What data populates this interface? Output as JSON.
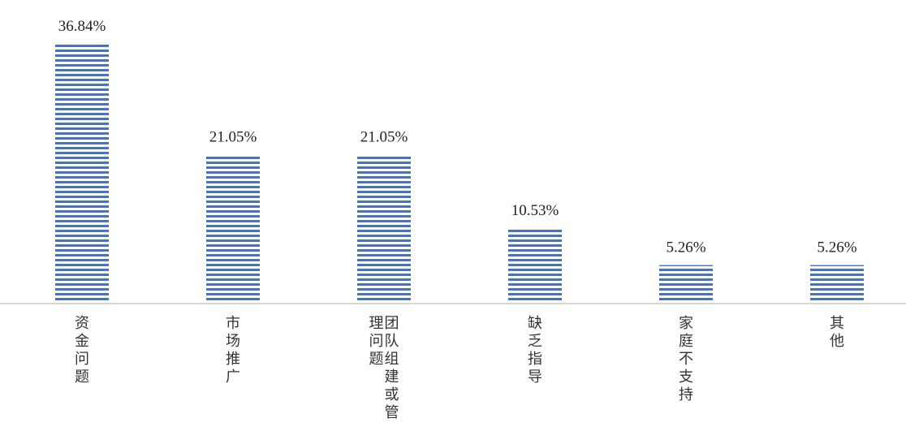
{
  "chart_data": {
    "type": "bar",
    "categories": [
      [
        "资金问题"
      ],
      [
        "市场推广"
      ],
      [
        "团队组建或管",
        "理问题"
      ],
      [
        "缺乏指导"
      ],
      [
        "家庭不支持"
      ],
      [
        "其他"
      ]
    ],
    "values": [
      36.84,
      21.05,
      21.05,
      10.53,
      5.26,
      5.26
    ],
    "value_labels": [
      "36.84%",
      "21.05%",
      "21.05%",
      "10.53%",
      "5.26%",
      "5.26%"
    ],
    "ylim": [
      0,
      36.84
    ],
    "grid": false,
    "bar_color": "#4472C4",
    "bar_pattern": "horizontal-stripes"
  }
}
